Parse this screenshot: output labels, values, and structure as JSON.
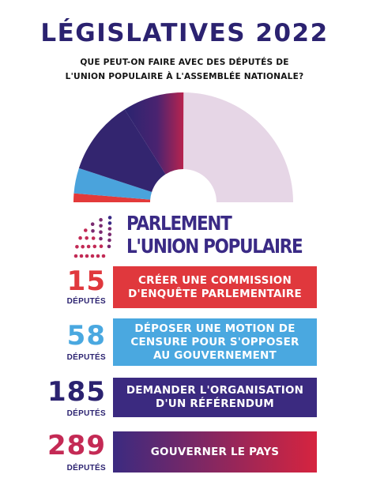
{
  "header": {
    "title": "LÉGISLATIVES 2022",
    "subtitle_line1": "QUE PEUT-ON FAIRE AVEC DES DÉPUTÉS DE",
    "subtitle_line2": "L'UNION POPULAIRE À L'ASSEMBLÉE NATIONALE?"
  },
  "hemicycle": {
    "total_seats": 577,
    "segments": [
      {
        "seats": 15,
        "color": "#e33a3a"
      },
      {
        "seats": 43,
        "color": "#4aa3dc"
      },
      {
        "seats": 127,
        "color": "#33256f"
      },
      {
        "seats": 104,
        "color": "#8c2a63"
      },
      {
        "seats": 288,
        "color": "#e6d6e6"
      }
    ]
  },
  "logo": {
    "line1": "PARLEMENT",
    "line2": "L'UNION POPULAIRE",
    "icon": "hemicycle-dots-icon"
  },
  "items": [
    {
      "number": "15",
      "unit": "DÉPUTÉS",
      "line1": "CRÉER UNE COMMISSION",
      "line2": "D'ENQUÊTE PARLEMENTAIRE",
      "line3": "",
      "num_color": "#e0383d",
      "box_color": "#e0383d"
    },
    {
      "number": "58",
      "unit": "DÉPUTÉS",
      "line1": "DÉPOSER UNE MOTION DE",
      "line2": "CENSURE POUR S'OPPOSER",
      "line3": "AU GOUVERNEMENT",
      "num_color": "#4aa8e0",
      "box_color": "#4aa8e0"
    },
    {
      "number": "185",
      "unit": "DÉPUTÉS",
      "line1": "DEMANDER L'ORGANISATION",
      "line2": "D'UN RÉFÉRENDUM",
      "line3": "",
      "num_color": "#2b2270",
      "box_color": "#3b2a80"
    },
    {
      "number": "289",
      "unit": "DÉPUTÉS",
      "line1": "GOUVERNER LE PAYS",
      "line2": "",
      "line3": "",
      "num_color": "#c42a55",
      "box_color": "#6a2a78"
    }
  ]
}
